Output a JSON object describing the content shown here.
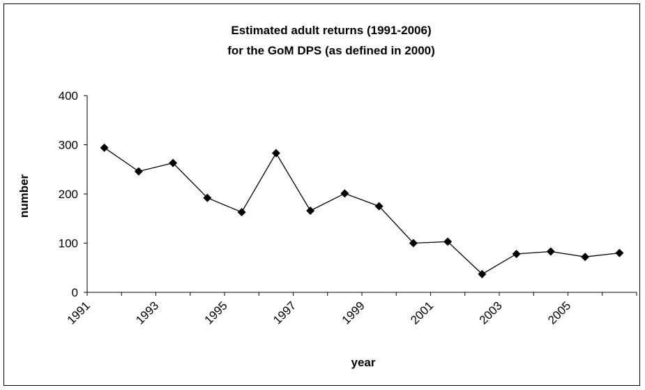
{
  "chart_data": {
    "type": "line",
    "title_lines": [
      "Estimated adult returns (1991-2006)",
      "for the GoM DPS (as defined in 2000)"
    ],
    "xlabel": "year",
    "ylabel": "number",
    "x_tick_labels": [
      "1991",
      "1993",
      "1995",
      "1997",
      "1999",
      "2001",
      "2003",
      "2005"
    ],
    "y_ticks": [
      0,
      100,
      200,
      300,
      400
    ],
    "ylim": [
      0,
      400
    ],
    "x": [
      1991,
      1992,
      1993,
      1994,
      1995,
      1996,
      1997,
      1998,
      1999,
      2000,
      2001,
      2002,
      2003,
      2004,
      2005,
      2006
    ],
    "values": [
      294,
      246,
      263,
      192,
      163,
      283,
      166,
      201,
      175,
      100,
      103,
      37,
      78,
      83,
      72,
      80
    ],
    "marker": "diamond",
    "line_color": "#000000",
    "grid": false
  }
}
